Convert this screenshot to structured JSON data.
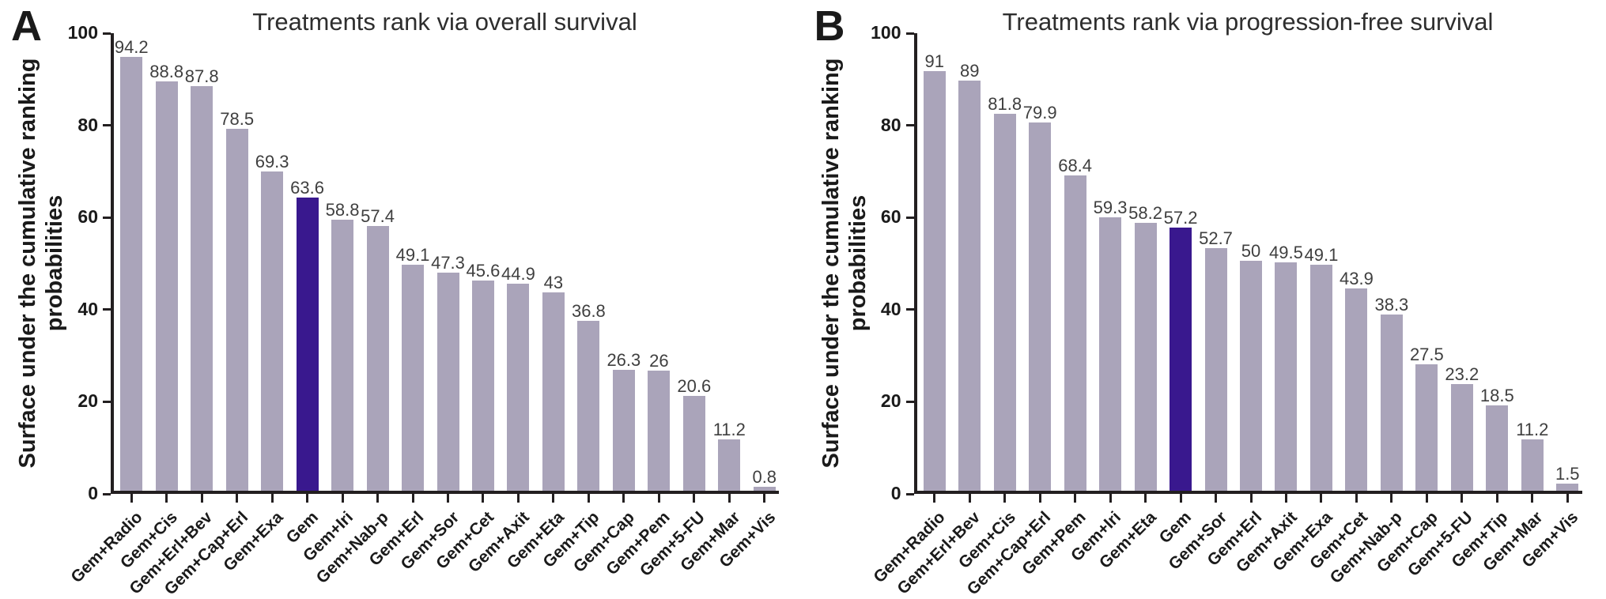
{
  "figure": {
    "background": "#ffffff"
  },
  "colors": {
    "bar_default": "#aaa4ba",
    "bar_highlight": "#39188e",
    "axis": "#231f20",
    "title_text": "#2e2e2e",
    "value_label_text": "#3f3f3f",
    "tick_label_text": "#1a1a1a"
  },
  "chart_data": [
    {
      "type": "bar",
      "panel_letter": "A",
      "title": "Treatments rank via overall survival",
      "ylabel": "Surface under the cumulative ranking probabilities",
      "ylabel_lines": [
        "Surface under the cumulative ranking",
        "probabilities"
      ],
      "xlabel": "",
      "ylim": [
        0,
        100
      ],
      "ytick_step": 20,
      "grid": false,
      "legend": "none",
      "highlight_category": "Gem",
      "categories": [
        "Gem+Radio",
        "Gem+Cis",
        "Gem+Erl+Bev",
        "Gem+Cap+Erl",
        "Gem+Exa",
        "Gem",
        "Gem+Iri",
        "Gem+Nab-p",
        "Gem+Erl",
        "Gem+Sor",
        "Gem+Cet",
        "Gem+Axit",
        "Gem+Eta",
        "Gem+Tip",
        "Gem+Cap",
        "Gem+Pem",
        "Gem+5-FU",
        "Gem+Mar",
        "Gem+Vis"
      ],
      "values": [
        94.2,
        88.8,
        87.8,
        78.5,
        69.3,
        63.6,
        58.8,
        57.4,
        49.1,
        47.3,
        45.6,
        44.9,
        43,
        36.8,
        26.3,
        26,
        20.6,
        11.2,
        0.8
      ]
    },
    {
      "type": "bar",
      "panel_letter": "B",
      "title": "Treatments rank via progression-free survival",
      "ylabel": "Surface under the cumulative ranking probabilities",
      "ylabel_lines": [
        "Surface under the cumulative ranking",
        "probabilities"
      ],
      "xlabel": "",
      "ylim": [
        0,
        100
      ],
      "ytick_step": 20,
      "grid": false,
      "legend": "none",
      "highlight_category": "Gem",
      "categories": [
        "Gem+Radio",
        "Gem+Erl+Bev",
        "Gem+Cis",
        "Gem+Cap+Erl",
        "Gem+Pem",
        "Gem+Iri",
        "Gem+Eta",
        "Gem",
        "Gem+Sor",
        "Gem+Erl",
        "Gem+Axit",
        "Gem+Exa",
        "Gem+Cet",
        "Gem+Nab-p",
        "Gem+Cap",
        "Gem+5-FU",
        "Gem+Tip",
        "Gem+Mar",
        "Gem+Vis"
      ],
      "values": [
        91,
        89,
        81.8,
        79.9,
        68.4,
        59.3,
        58.2,
        57.2,
        52.7,
        50,
        49.5,
        49.1,
        43.9,
        38.3,
        27.5,
        23.2,
        18.5,
        11.2,
        1.5
      ]
    }
  ]
}
